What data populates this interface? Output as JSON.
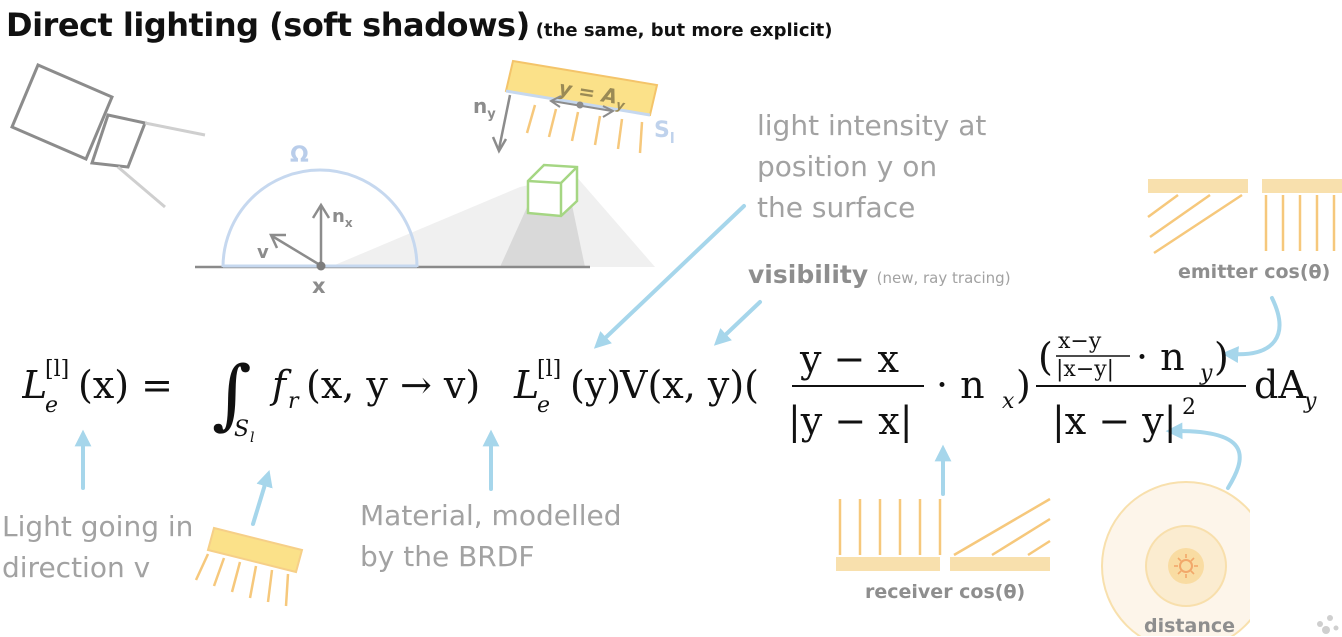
{
  "title": {
    "main": "Direct lighting (soft shadows)",
    "sub": "(the same, but more explicit)"
  },
  "diagram": {
    "omega": "Ω",
    "normal_x": "n",
    "normal_x_sub": "x",
    "view": "v",
    "point": "x",
    "normal_y": "n",
    "normal_y_sub": "y",
    "light_pos": "y = A",
    "light_pos_sub": "y",
    "surface": "S",
    "surface_sub": "l"
  },
  "annotations": {
    "intensity_lines": [
      "light intensity at",
      "position y on",
      "the surface"
    ],
    "visibility": "visibility",
    "visibility_note": "(new, ray tracing)",
    "emitter_cos": "emitter cos(θ)",
    "light_dir_lines": [
      "Light going in",
      "direction v"
    ],
    "material_lines": [
      "Material, modelled",
      "by the BRDF"
    ],
    "receiver_cos": "receiver cos(θ)",
    "distance": "distance"
  },
  "formula": {
    "lhs": "L",
    "lhs_sub": "e",
    "lhs_sup": "[l]",
    "lhs_arg": "(x) =",
    "integral": "∫",
    "int_sub": "S",
    "int_sub_sub": "l",
    "brdf": "f",
    "brdf_sub": "r",
    "brdf_args": "(x, y → v)",
    "emit": "L",
    "emit_sub": "e",
    "emit_sup": "[l]",
    "emit_args": "(y)",
    "vis": "V(x, y)(",
    "frac1_num": "y − x",
    "frac1_den": "|y − x|",
    "dot_nx": "· n",
    "nx_sub": "x",
    "close": ")",
    "frac2_num_a": "(",
    "frac2_inner_num": "x−y",
    "frac2_inner_den": "|x−y|",
    "frac2_dot": "· n",
    "frac2_ny_sub": "y",
    "frac2_num_b": ")",
    "frac2_den": "|x − y|",
    "frac2_den_sup": "2",
    "dA": "dA",
    "dA_sub": "y"
  },
  "colors": {
    "arrow": "#a6d6eb",
    "light_fill": "#fbe189",
    "light_stroke": "#f4c46a",
    "hemisphere": "#c6d8ef",
    "cube": "#a5d683",
    "tint": "#f8e0ad"
  }
}
